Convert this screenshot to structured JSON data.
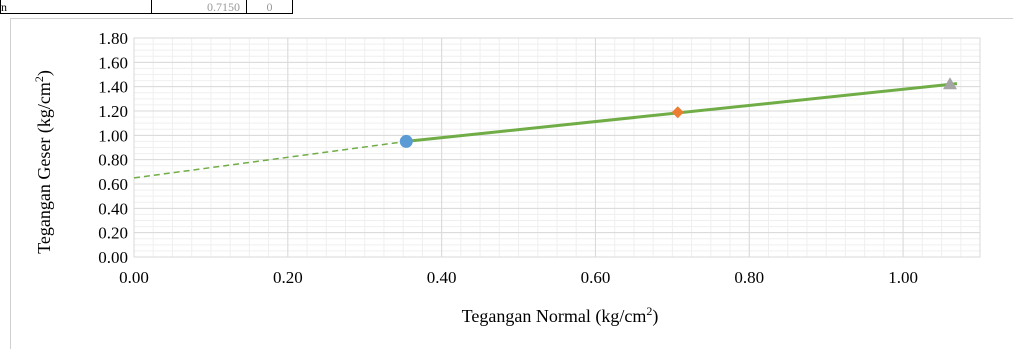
{
  "table_fragment": {
    "cells": [
      "n",
      "0.7150",
      "0"
    ]
  },
  "chart_data": {
    "type": "scatter",
    "title": "",
    "xlabel": "Tegangan Normal (kg/cm²)",
    "ylabel": "Tegangan Geser (kg/cm²)",
    "xlim": [
      0,
      1.1
    ],
    "ylim": [
      0,
      1.8
    ],
    "x_ticks": [
      "0.00",
      "0.20",
      "0.40",
      "0.60",
      "0.80",
      "1.00"
    ],
    "y_ticks": [
      "0.00",
      "0.20",
      "0.40",
      "0.60",
      "0.80",
      "1.00",
      "1.20",
      "1.40",
      "1.60",
      "1.80"
    ],
    "grid": true,
    "points": [
      {
        "x": 0.354,
        "y": 0.95,
        "marker": "circle",
        "color": "#5b9bd5"
      },
      {
        "x": 0.707,
        "y": 1.19,
        "marker": "diamond",
        "color": "#ed7d31"
      },
      {
        "x": 1.061,
        "y": 1.42,
        "marker": "triangle",
        "color": "#a5a5a5"
      }
    ],
    "trendline": {
      "x": [
        0.354,
        1.07
      ],
      "y": [
        0.95,
        1.425
      ],
      "color": "#70ad47",
      "style": "solid"
    },
    "extrapolation": {
      "x": [
        0,
        0.354
      ],
      "y": [
        0.65,
        0.95
      ],
      "color": "#70ad47",
      "style": "dashed"
    }
  }
}
